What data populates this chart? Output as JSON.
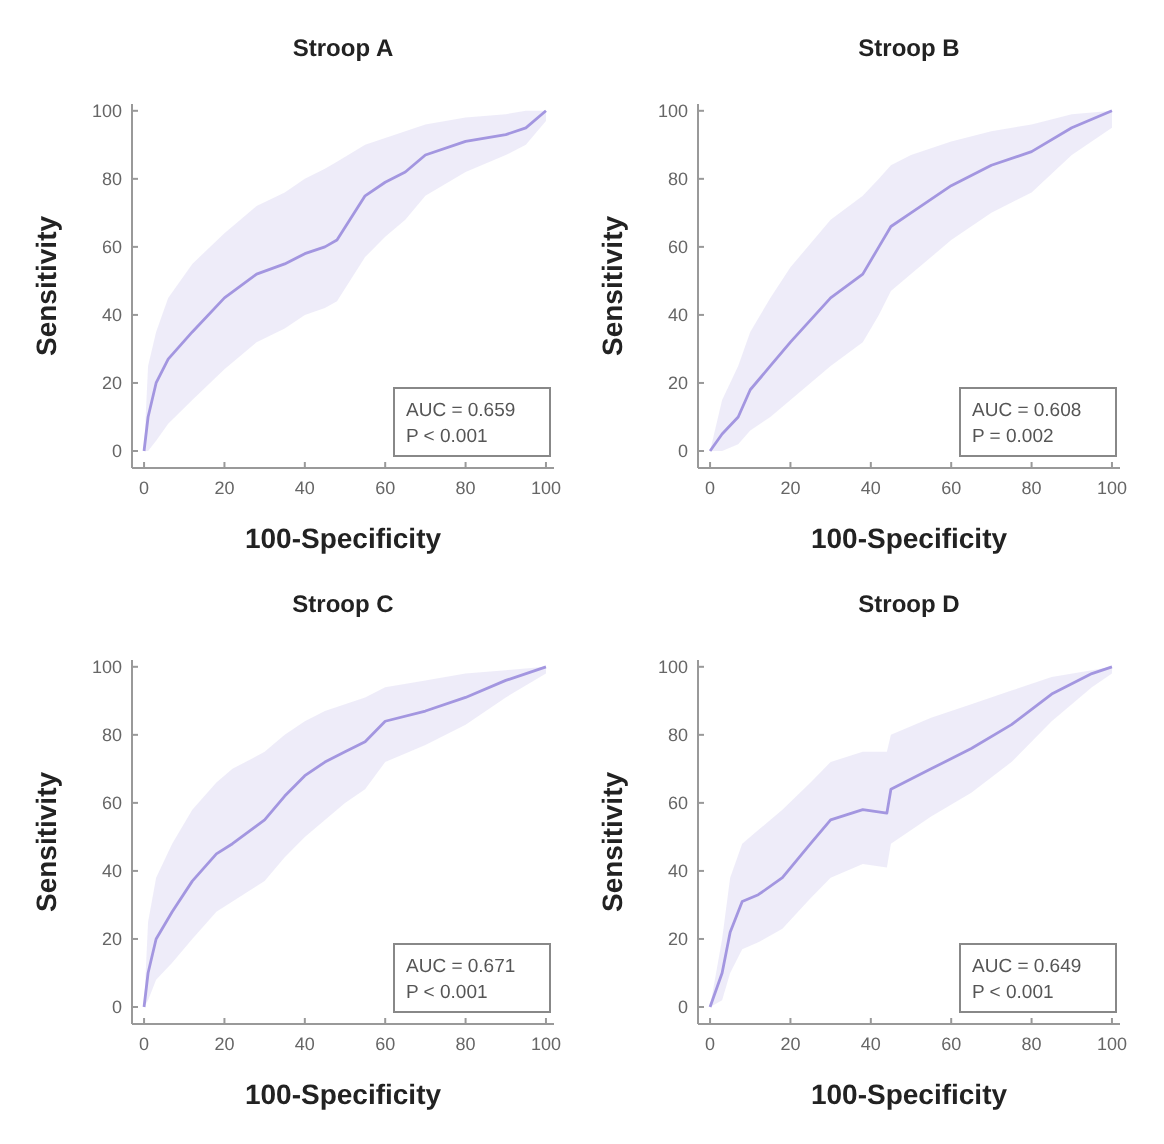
{
  "chart_data": [
    {
      "type": "line",
      "title": "Stroop A",
      "xlabel": "100-Specificity",
      "ylabel": "Sensitivity",
      "xlim": [
        -3,
        102
      ],
      "ylim": [
        -5,
        102
      ],
      "xticks": [
        0,
        20,
        40,
        60,
        80,
        100
      ],
      "yticks": [
        0,
        20,
        40,
        60,
        80,
        100
      ],
      "grid": false,
      "annotations": [
        "AUC = 0.659",
        "P < 0.001"
      ],
      "series": [
        {
          "color": "#a396e0",
          "x": [
            0,
            1,
            3,
            6,
            12,
            20,
            28,
            35,
            40,
            45,
            48,
            55,
            60,
            65,
            70,
            80,
            90,
            95,
            100
          ],
          "values": [
            0,
            10,
            20,
            27,
            35,
            45,
            52,
            55,
            58,
            60,
            62,
            75,
            79,
            82,
            87,
            91,
            93,
            95,
            100
          ],
          "upper": [
            0,
            25,
            35,
            45,
            55,
            64,
            72,
            76,
            80,
            83,
            85,
            90,
            92,
            94,
            96,
            98,
            99,
            100,
            100
          ],
          "lower": [
            0,
            0,
            3,
            8,
            15,
            24,
            32,
            36,
            40,
            42,
            44,
            57,
            63,
            68,
            75,
            82,
            87,
            90,
            97
          ]
        }
      ]
    },
    {
      "type": "line",
      "title": "Stroop B",
      "xlabel": "100-Specificity",
      "ylabel": "Sensitivity",
      "xlim": [
        -3,
        102
      ],
      "ylim": [
        -5,
        102
      ],
      "xticks": [
        0,
        20,
        40,
        60,
        80,
        100
      ],
      "yticks": [
        0,
        20,
        40,
        60,
        80,
        100
      ],
      "grid": false,
      "annotations": [
        "AUC = 0.608",
        "P = 0.002"
      ],
      "series": [
        {
          "color": "#a396e0",
          "x": [
            0,
            3,
            7,
            10,
            15,
            20,
            30,
            38,
            42,
            45,
            50,
            60,
            70,
            80,
            90,
            100
          ],
          "values": [
            0,
            5,
            10,
            18,
            25,
            32,
            45,
            52,
            60,
            66,
            70,
            78,
            84,
            88,
            95,
            100
          ],
          "upper": [
            0,
            15,
            25,
            35,
            45,
            54,
            68,
            75,
            80,
            84,
            87,
            91,
            94,
            96,
            99,
            100
          ],
          "lower": [
            0,
            0,
            2,
            6,
            10,
            15,
            25,
            32,
            40,
            47,
            52,
            62,
            70,
            76,
            87,
            95
          ]
        }
      ]
    },
    {
      "type": "line",
      "title": "Stroop C",
      "xlabel": "100-Specificity",
      "ylabel": "Sensitivity",
      "xlim": [
        -3,
        102
      ],
      "ylim": [
        -5,
        102
      ],
      "xticks": [
        0,
        20,
        40,
        60,
        80,
        100
      ],
      "yticks": [
        0,
        20,
        40,
        60,
        80,
        100
      ],
      "grid": false,
      "annotations": [
        "AUC = 0.671",
        "P < 0.001"
      ],
      "series": [
        {
          "color": "#a396e0",
          "x": [
            0,
            1,
            3,
            7,
            12,
            18,
            22,
            30,
            35,
            40,
            45,
            50,
            55,
            60,
            70,
            80,
            90,
            100
          ],
          "values": [
            0,
            10,
            20,
            28,
            37,
            45,
            48,
            55,
            62,
            68,
            72,
            75,
            78,
            84,
            87,
            91,
            96,
            100
          ],
          "upper": [
            0,
            25,
            38,
            48,
            58,
            66,
            70,
            75,
            80,
            84,
            87,
            89,
            91,
            94,
            96,
            98,
            99,
            100
          ],
          "lower": [
            0,
            2,
            8,
            13,
            20,
            28,
            31,
            37,
            44,
            50,
            55,
            60,
            64,
            72,
            77,
            83,
            91,
            98
          ]
        }
      ]
    },
    {
      "type": "line",
      "title": "Stroop D",
      "xlabel": "100-Specificity",
      "ylabel": "Sensitivity",
      "xlim": [
        -3,
        102
      ],
      "ylim": [
        -5,
        102
      ],
      "xticks": [
        0,
        20,
        40,
        60,
        80,
        100
      ],
      "yticks": [
        0,
        20,
        40,
        60,
        80,
        100
      ],
      "grid": false,
      "annotations": [
        "AUC = 0.649",
        "P < 0.001"
      ],
      "series": [
        {
          "color": "#a396e0",
          "x": [
            0,
            3,
            5,
            8,
            12,
            18,
            25,
            30,
            38,
            44,
            45,
            55,
            65,
            75,
            85,
            95,
            100
          ],
          "values": [
            0,
            10,
            22,
            31,
            33,
            38,
            48,
            55,
            58,
            57,
            64,
            70,
            76,
            83,
            92,
            98,
            100
          ],
          "upper": [
            0,
            20,
            38,
            48,
            52,
            58,
            66,
            72,
            75,
            75,
            80,
            85,
            89,
            93,
            97,
            99,
            100
          ],
          "lower": [
            0,
            2,
            10,
            17,
            19,
            23,
            32,
            38,
            42,
            41,
            48,
            56,
            63,
            72,
            84,
            94,
            98
          ]
        }
      ]
    }
  ]
}
